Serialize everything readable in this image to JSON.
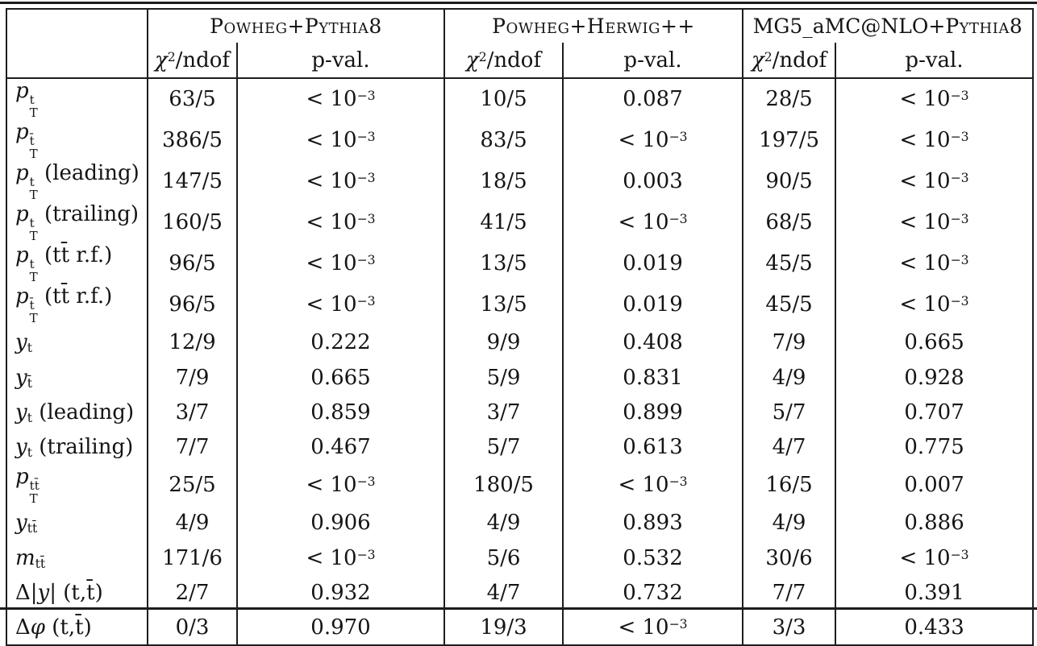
{
  "colors": {
    "line": "#1d1d1d",
    "text": "#141414",
    "background": "#ffffff"
  },
  "table": {
    "groups": [
      {
        "name": "powheg-pythia8",
        "title_segments": [
          {
            "sc": "Powheg+Pythia8"
          }
        ]
      },
      {
        "name": "powheg-herwig",
        "title_segments": [
          {
            "sc": "Powheg+Herwig++"
          }
        ]
      },
      {
        "name": "mg5-amcnlo-pythia8",
        "title_segments": [
          {
            "t": "MG5_aMC@NLO+"
          },
          {
            "sc": "Pythia8"
          }
        ]
      }
    ],
    "subheader": {
      "chi2_segments": [
        {
          "i": "χ"
        },
        {
          "sup": "2"
        },
        {
          "t": "/ndof"
        }
      ],
      "pval_segments": [
        {
          "t": "p-val."
        }
      ]
    },
    "rows": [
      {
        "label": [
          {
            "i": "p"
          },
          {
            "stack": [
              "t",
              "T"
            ]
          }
        ],
        "cells": [
          "63/5",
          "< 10^{−3}",
          "10/5",
          "0.087",
          "28/5",
          "< 10^{−3}"
        ]
      },
      {
        "label": [
          {
            "i": "p"
          },
          {
            "stack": [
              "t̄",
              "T"
            ]
          }
        ],
        "cells": [
          "386/5",
          "< 10^{−3}",
          "83/5",
          "< 10^{−3}",
          "197/5",
          "< 10^{−3}"
        ]
      },
      {
        "label": [
          {
            "i": "p"
          },
          {
            "stack": [
              "t",
              "T"
            ]
          },
          {
            "t": " (leading)"
          }
        ],
        "cells": [
          "147/5",
          "< 10^{−3}",
          "18/5",
          "0.003",
          "90/5",
          "< 10^{−3}"
        ]
      },
      {
        "label": [
          {
            "i": "p"
          },
          {
            "stack": [
              "t",
              "T"
            ]
          },
          {
            "t": " (trailing)"
          }
        ],
        "cells": [
          "160/5",
          "< 10^{−3}",
          "41/5",
          "< 10^{−3}",
          "68/5",
          "< 10^{−3}"
        ]
      },
      {
        "label": [
          {
            "i": "p"
          },
          {
            "stack": [
              "t",
              "T"
            ]
          },
          {
            "t": " (tt̄ r.f.)"
          }
        ],
        "cells": [
          "96/5",
          "< 10^{−3}",
          "13/5",
          "0.019",
          "45/5",
          "< 10^{−3}"
        ]
      },
      {
        "label": [
          {
            "i": "p"
          },
          {
            "stack": [
              "t̄",
              "T"
            ]
          },
          {
            "t": " (tt̄ r.f.)"
          }
        ],
        "cells": [
          "96/5",
          "< 10^{−3}",
          "13/5",
          "0.019",
          "45/5",
          "< 10^{−3}"
        ]
      },
      {
        "label": [
          {
            "i": "y"
          },
          {
            "sub": "t"
          }
        ],
        "cells": [
          "12/9",
          "0.222",
          "9/9",
          "0.408",
          "7/9",
          "0.665"
        ]
      },
      {
        "label": [
          {
            "i": "y"
          },
          {
            "sub": "t̄"
          }
        ],
        "cells": [
          "7/9",
          "0.665",
          "5/9",
          "0.831",
          "4/9",
          "0.928"
        ]
      },
      {
        "label": [
          {
            "i": "y"
          },
          {
            "sub": "t"
          },
          {
            "t": " (leading)"
          }
        ],
        "cells": [
          "3/7",
          "0.859",
          "3/7",
          "0.899",
          "5/7",
          "0.707"
        ]
      },
      {
        "label": [
          {
            "i": "y"
          },
          {
            "sub": "t"
          },
          {
            "t": " (trailing)"
          }
        ],
        "cells": [
          "7/7",
          "0.467",
          "5/7",
          "0.613",
          "4/7",
          "0.775"
        ]
      },
      {
        "label": [
          {
            "i": "p"
          },
          {
            "stack": [
              "tt̄",
              "T"
            ]
          }
        ],
        "cells": [
          "25/5",
          "< 10^{−3}",
          "180/5",
          "< 10^{−3}",
          "16/5",
          "0.007"
        ]
      },
      {
        "label": [
          {
            "i": "y"
          },
          {
            "sub": "tt̄"
          }
        ],
        "cells": [
          "4/9",
          "0.906",
          "4/9",
          "0.893",
          "4/9",
          "0.886"
        ]
      },
      {
        "label": [
          {
            "i": "m"
          },
          {
            "sub": "tt̄"
          }
        ],
        "cells": [
          "171/6",
          "< 10^{−3}",
          "5/6",
          "0.532",
          "30/6",
          "< 10^{−3}"
        ]
      },
      {
        "label": [
          {
            "t": "Δ|"
          },
          {
            "i": "y"
          },
          {
            "t": "| (t,t̄)"
          }
        ],
        "cells": [
          "2/7",
          "0.932",
          "4/7",
          "0.732",
          "7/7",
          "0.391"
        ]
      },
      {
        "label": [
          {
            "t": "Δ"
          },
          {
            "i": "φ"
          },
          {
            "t": " (t,t̄)"
          }
        ],
        "cells": [
          "0/3",
          "0.970",
          "19/3",
          "< 10^{−3}",
          "3/3",
          "0.433"
        ]
      }
    ]
  }
}
